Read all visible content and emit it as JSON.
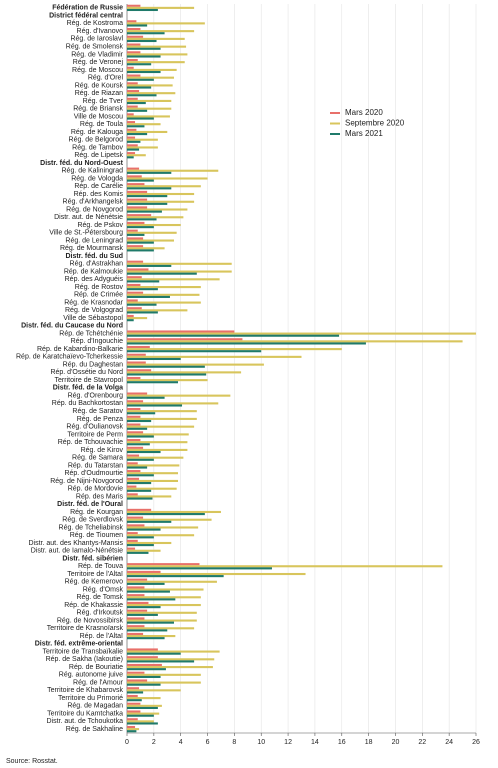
{
  "chart_data": {
    "type": "hbar",
    "categories": [
      "Fédération de Russie",
      "District fédéral central",
      "Rég. de Kostroma",
      "Rég. d'Ivanovo",
      "Rég. de Iaroslavl",
      "Rég. de Smolensk",
      "Rég. de Vladimir",
      "Rég. de Veronej",
      "Rég. de Moscou",
      "Rég. d'Orel",
      "Rég. de Koursk",
      "Rég. de Riazan",
      "Rég. de Tver",
      "Rég. de Briansk",
      "Ville de Moscou",
      "Rég. de Toula",
      "Rég. de Kalouga",
      "Rég. de Belgorod",
      "Rég. de Tambov",
      "Rég. de Lipetsk",
      "Distr. féd. du Nord-Ouest",
      "Rég. de Kaliningrad",
      "Rég. de Vologda",
      "Rép. de Carélie",
      "Rép. des Komis",
      "Rég. d'Arkhangelsk",
      "Rég. de Novgorod",
      "Distr. aut. de Nénétsie",
      "Rég. de Pskov",
      "Ville de St.-Pétersbourg",
      "Rég. de Leningrad",
      "Rég. de Mourmansk",
      "Distr. féd. du Sud",
      "Rég. d'Astrakhan",
      "Rép. de Kalmoukie",
      "Rép. des Adyguéis",
      "Rég. de Rostov",
      "Rép. de Crimée",
      "Rég. de Krasnodar",
      "Rég. de Volgograd",
      "Ville de Sébastopol",
      "Distr. féd. du Caucase du Nord",
      "Rép. de Tchétchénie",
      "Rép. d'Ingouchie",
      "Rép. de Kabardino-Balkarie",
      "Rép. de Karatchaïevo-Tcherkessie",
      "Rép. du Daghestan",
      "Rép. d'Ossétie du Nord",
      "Territoire de Stavropol",
      "Distr. féd. de la Volga",
      "Rég. d'Orenbourg",
      "Rép. du Bachkortostan",
      "Rég. de Saratov",
      "Rég. de Penza",
      "Rég. d'Oulianovsk",
      "Territoire de Perm",
      "Rép. de Tchouvachie",
      "Rég. de Kirov",
      "Rég. de Samara",
      "Rép. du Tatarstan",
      "Rép. d'Oudmourtie",
      "Rég. de Nijni-Novgorod",
      "Rép. de Mordovie",
      "Rép. des Maris",
      "Distr. féd. de l'Oural",
      "Rég. de Kourgan",
      "Rég. de Sverdlovsk",
      "Rég. de Tcheliabinsk",
      "Rég. de Tioumen",
      "Distr. aut. des Khantys-Mansis",
      "Distr. aut. de Iamalo-Nénétsie",
      "Distr. féd. sibérien",
      "Rép. de Touva",
      "Territoire de l'Altaï",
      "Rég. de Kemerovo",
      "Rég. d'Omsk",
      "Rég. de Tomsk",
      "Rép. de Khakassie",
      "Rég. d'Irkoutsk",
      "Rég. de Novossibirsk",
      "Territoire de Krasnoïarsk",
      "Rép. de l'Altaï",
      "Distr. féd. extrême-oriental",
      "Territoire de Transbaïkalie",
      "Rép. de Sakha (Iakoutie)",
      "Rép. de Bouriatie",
      "Rég. autonome juive",
      "Rég. de l'Amour",
      "Territoire de Khabarovsk",
      "Territoire du Primorié",
      "Rég. de Magadan",
      "Territoire du Kamtchatka",
      "Distr. aut. de Tchoukotka",
      "Rég. de Sakhaline"
    ],
    "series": [
      {
        "name": "Mars 2020",
        "color": "#e8706a",
        "values": [
          1.0,
          null,
          0.7,
          1.0,
          1.2,
          1.0,
          1.0,
          0.8,
          0.5,
          1.0,
          0.8,
          0.9,
          0.8,
          0.8,
          0.5,
          0.6,
          0.7,
          0.6,
          0.8,
          0.6,
          null,
          0.9,
          1.1,
          1.3,
          1.5,
          1.5,
          1.5,
          1.8,
          1.3,
          0.8,
          1.2,
          1.2,
          null,
          1.2,
          1.6,
          1.1,
          1.0,
          1.2,
          0.8,
          1.1,
          0.5,
          null,
          8.0,
          8.6,
          1.7,
          1.4,
          1.4,
          1.8,
          1.0,
          null,
          1.5,
          1.2,
          1.0,
          1.0,
          1.0,
          1.2,
          1.0,
          1.2,
          0.9,
          0.8,
          1.0,
          0.9,
          0.7,
          0.8,
          null,
          1.8,
          1.2,
          1.3,
          0.8,
          0.8,
          0.6,
          null,
          5.4,
          2.5,
          1.5,
          1.3,
          1.3,
          1.6,
          1.5,
          1.3,
          1.3,
          1.2,
          null,
          2.3,
          2.3,
          2.6,
          1.3,
          1.5,
          0.9,
          0.8,
          1.0,
          1.0,
          0.8,
          0.6
        ]
      },
      {
        "name": "Septembre 2020",
        "color": "#d8c55c",
        "values": [
          5.0,
          null,
          5.8,
          5.0,
          4.3,
          4.4,
          4.5,
          4.3,
          3.7,
          3.5,
          3.4,
          3.6,
          3.3,
          3.3,
          3.2,
          2.5,
          3.0,
          2.3,
          2.3,
          1.4,
          null,
          6.8,
          6.0,
          5.5,
          5.0,
          5.0,
          4.5,
          4.2,
          4.0,
          3.7,
          3.5,
          2.8,
          null,
          7.8,
          7.8,
          6.9,
          5.5,
          5.4,
          5.5,
          4.5,
          1.5,
          null,
          26,
          25,
          16,
          13,
          10.2,
          8.5,
          6.0,
          null,
          7.7,
          6.8,
          5.2,
          5.2,
          5.0,
          4.6,
          4.5,
          4.5,
          4.2,
          3.9,
          3.8,
          3.8,
          3.7,
          3.3,
          null,
          7.0,
          6.3,
          5.3,
          5.0,
          3.3,
          2.5,
          null,
          23.5,
          13.3,
          6.7,
          5.7,
          5.5,
          5.5,
          5.2,
          5.2,
          5.0,
          3.6,
          null,
          6.9,
          6.5,
          6.4,
          5.5,
          5.5,
          4.0,
          2.5,
          2.6,
          2.4,
          2.0,
          0.9
        ]
      },
      {
        "name": "Mars 2021",
        "color": "#1f7a6a",
        "values": [
          2.3,
          null,
          1.5,
          2.8,
          2.2,
          2.5,
          2.5,
          1.8,
          2.5,
          2.0,
          1.8,
          2.2,
          1.4,
          1.5,
          2.0,
          1.3,
          1.5,
          1.0,
          0.9,
          0.5,
          null,
          3.3,
          2.0,
          3.3,
          3.0,
          3.0,
          2.6,
          2.2,
          2.0,
          1.3,
          2.0,
          2.0,
          null,
          3.3,
          5.2,
          2.4,
          2.3,
          3.2,
          2.2,
          2.3,
          0.5,
          null,
          15.8,
          17.8,
          10.0,
          4.0,
          5.8,
          5.9,
          3.8,
          null,
          2.8,
          4.1,
          2.1,
          1.8,
          1.5,
          2.0,
          1.7,
          2.5,
          2.0,
          1.5,
          2.0,
          1.8,
          1.8,
          1.9,
          null,
          5.8,
          3.3,
          2.5,
          2.0,
          2.0,
          1.6,
          null,
          10.8,
          7.2,
          2.8,
          3.2,
          3.6,
          2.5,
          2.3,
          3.5,
          3.0,
          2.8,
          null,
          4.0,
          5.0,
          2.9,
          2.5,
          2.5,
          1.2,
          1.1,
          2.3,
          2.0,
          2.3,
          0.7
        ]
      }
    ],
    "xlim": [
      0,
      26
    ],
    "xticks": [
      0,
      2,
      4,
      6,
      8,
      10,
      12,
      14,
      16,
      18,
      20,
      22,
      24,
      26
    ],
    "grid": true,
    "source": "Source: Rosstat."
  }
}
